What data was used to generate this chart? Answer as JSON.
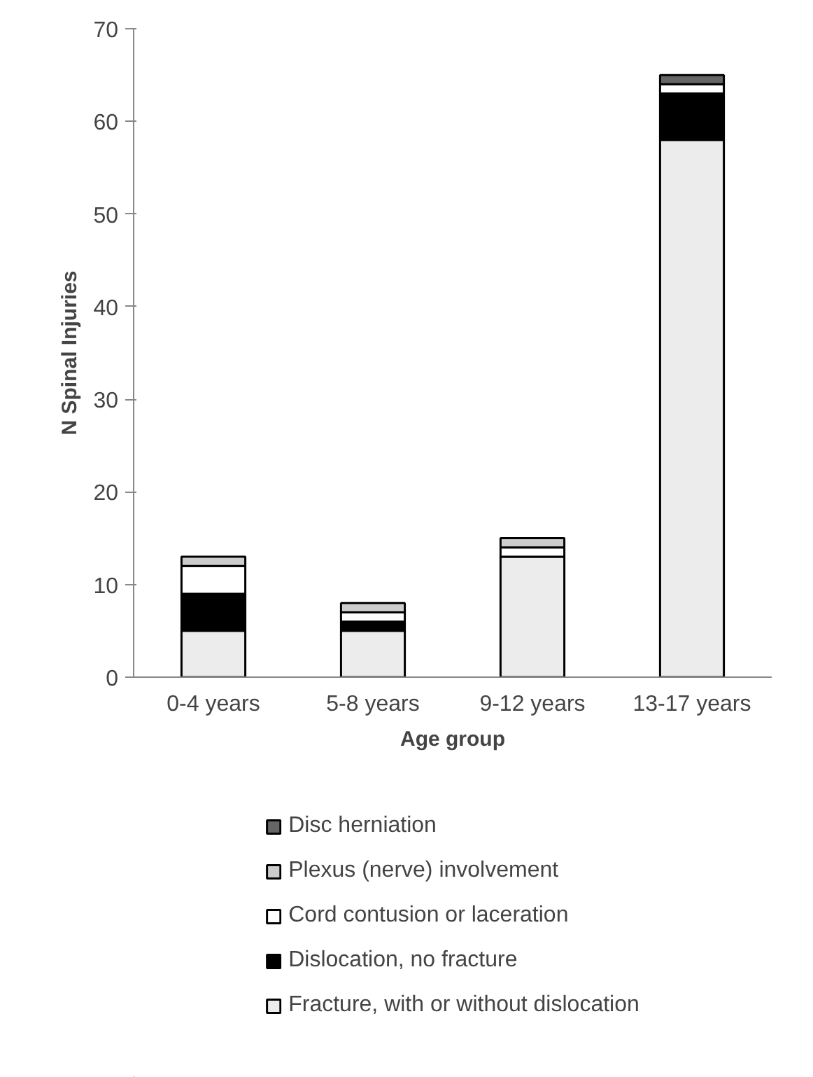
{
  "chart_data": {
    "type": "bar",
    "stacked": true,
    "xlabel": "Age group",
    "ylabel": "N Spinal Injuries",
    "categories": [
      "0-4 years",
      "5-8 years",
      "9-12 years",
      "13-17 years"
    ],
    "series": [
      {
        "name": "Fracture, with or without dislocation",
        "color": "#ececec",
        "values": [
          5,
          5,
          13,
          58
        ]
      },
      {
        "name": "Dislocation, no fracture",
        "color": "#000000",
        "values": [
          4,
          1,
          0,
          5
        ]
      },
      {
        "name": "Cord contusion or laceration",
        "color": "#ffffff",
        "values": [
          3,
          1,
          1,
          1
        ]
      },
      {
        "name": "Plexus (nerve) involvement",
        "color": "#cccccc",
        "values": [
          1,
          1,
          1,
          0
        ]
      },
      {
        "name": "Disc herniation",
        "color": "#666666",
        "values": [
          0,
          0,
          0,
          1
        ]
      }
    ],
    "ylim": [
      0,
      70
    ],
    "yticks": [
      0,
      10,
      20,
      30,
      40,
      50,
      60,
      70
    ],
    "grid": false,
    "legend": "bottom"
  }
}
